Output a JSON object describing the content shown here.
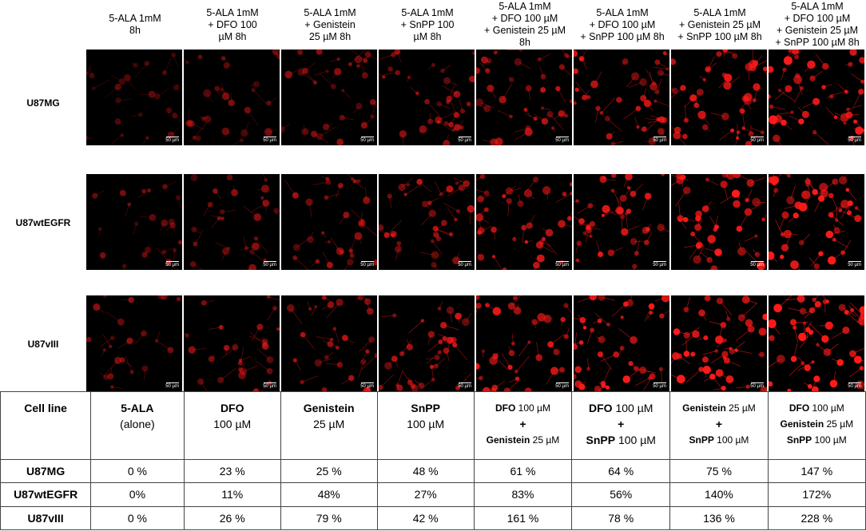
{
  "column_headers": [
    [
      "5-ALA 1mM",
      "8h"
    ],
    [
      "5-ALA 1mM",
      "+ DFO 100",
      "µM 8h"
    ],
    [
      "5-ALA 1mM",
      "+ Genistein",
      "25 µM 8h"
    ],
    [
      "5-ALA 1mM",
      "+ SnPP 100",
      "µM 8h"
    ],
    [
      "5-ALA 1mM",
      "+ DFO 100 µM",
      "+ Genistein 25 µM",
      "8h"
    ],
    [
      "5-ALA 1mM",
      "+ DFO 100 µM",
      "+ SnPP 100 µM 8h"
    ],
    [
      "5-ALA 1mM",
      "+ Genistein 25 µM",
      "+ SnPP 100 µM 8h"
    ],
    [
      "5-ALA 1mM",
      "+ DFO 100 µM",
      "+ Genistein 25 µM",
      "+ SnPP 100 µM 8h"
    ]
  ],
  "row_labels": [
    "U87MG",
    "U87wtEGFR",
    "U87vIII"
  ],
  "scale_bar_label": "50 µm",
  "fluorescence_color": "#ff1a1a",
  "table": {
    "corner": "Cell line",
    "headers": [
      [
        [
          {
            "b": "5-ALA"
          }
        ],
        [
          {
            "n": "(alone)"
          }
        ]
      ],
      [
        [
          {
            "b": "DFO"
          }
        ],
        [
          {
            "n": "100 µM"
          }
        ]
      ],
      [
        [
          {
            "b": "Genistein"
          }
        ],
        [
          {
            "n": "25 µM"
          }
        ]
      ],
      [
        [
          {
            "b": "SnPP"
          }
        ],
        [
          {
            "n": "100 µM"
          }
        ]
      ],
      [
        [
          {
            "b": "DFO"
          },
          {
            "n": " 100 µM"
          }
        ],
        [
          {
            "b": "+"
          }
        ],
        [
          {
            "b": "Genistein"
          },
          {
            "n": " 25 µM"
          }
        ]
      ],
      [
        [
          {
            "b": "DFO"
          },
          {
            "n": " 100 µM"
          }
        ],
        [
          {
            "b": "+"
          }
        ],
        [
          {
            "b": "SnPP"
          },
          {
            "n": " 100 µM"
          }
        ]
      ],
      [
        [
          {
            "b": "Genistein"
          },
          {
            "n": " 25 µM"
          }
        ],
        [
          {
            "b": "+"
          }
        ],
        [
          {
            "b": "SnPP"
          },
          {
            "n": " 100 µM"
          }
        ]
      ],
      [
        [
          {
            "b": "DFO"
          },
          {
            "n": " 100 µM"
          }
        ],
        [
          {
            "b": "Genistein"
          },
          {
            "n": " 25 µM"
          }
        ],
        [
          {
            "b": "SnPP"
          },
          {
            "n": " 100 µM"
          }
        ]
      ]
    ],
    "rows": [
      {
        "label": "U87MG",
        "values": [
          "0 %",
          "23 %",
          "25 %",
          "48 %",
          "61 %",
          "64 %",
          "75 %",
          "147 %"
        ]
      },
      {
        "label": "U87wtEGFR",
        "values": [
          "0%",
          "11%",
          "48%",
          "27%",
          "83%",
          "56%",
          "140%",
          "172%"
        ]
      },
      {
        "label": "U87vIII",
        "values": [
          "0 %",
          "26 %",
          "79 %",
          "42 %",
          "161 %",
          "78 %",
          "136 %",
          "228 %"
        ]
      }
    ]
  }
}
